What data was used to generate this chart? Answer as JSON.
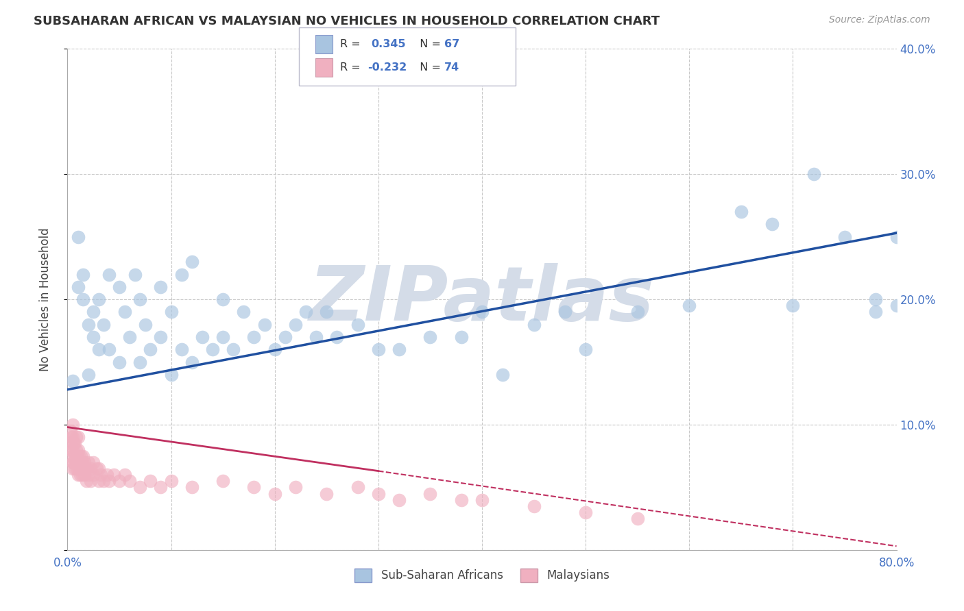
{
  "title": "SUBSAHARAN AFRICAN VS MALAYSIAN NO VEHICLES IN HOUSEHOLD CORRELATION CHART",
  "source": "Source: ZipAtlas.com",
  "ylabel": "No Vehicles in Household",
  "xlim": [
    0,
    0.8
  ],
  "ylim": [
    0,
    0.4
  ],
  "xticks": [
    0.0,
    0.1,
    0.2,
    0.3,
    0.4,
    0.5,
    0.6,
    0.7,
    0.8
  ],
  "yticks": [
    0.0,
    0.1,
    0.2,
    0.3,
    0.4
  ],
  "background_color": "#ffffff",
  "grid_color": "#c8c8c8",
  "watermark": "ZIPatlas",
  "watermark_color": "#d4dce8",
  "label1": "Sub-Saharan Africans",
  "label2": "Malaysians",
  "color1": "#a8c4e0",
  "color2": "#f0b0c0",
  "line_color1": "#2050a0",
  "line_color2": "#c03060",
  "blue_x": [
    0.005,
    0.01,
    0.01,
    0.015,
    0.015,
    0.02,
    0.02,
    0.025,
    0.025,
    0.03,
    0.03,
    0.035,
    0.04,
    0.04,
    0.05,
    0.05,
    0.055,
    0.06,
    0.065,
    0.07,
    0.07,
    0.075,
    0.08,
    0.09,
    0.09,
    0.1,
    0.1,
    0.11,
    0.11,
    0.12,
    0.12,
    0.13,
    0.14,
    0.15,
    0.15,
    0.16,
    0.17,
    0.18,
    0.19,
    0.2,
    0.21,
    0.22,
    0.23,
    0.24,
    0.25,
    0.26,
    0.28,
    0.3,
    0.32,
    0.35,
    0.38,
    0.4,
    0.42,
    0.45,
    0.48,
    0.5,
    0.55,
    0.6,
    0.65,
    0.68,
    0.7,
    0.72,
    0.75,
    0.78,
    0.78,
    0.8,
    0.8
  ],
  "blue_y": [
    0.135,
    0.25,
    0.21,
    0.2,
    0.22,
    0.14,
    0.18,
    0.17,
    0.19,
    0.16,
    0.2,
    0.18,
    0.22,
    0.16,
    0.15,
    0.21,
    0.19,
    0.17,
    0.22,
    0.15,
    0.2,
    0.18,
    0.16,
    0.17,
    0.21,
    0.14,
    0.19,
    0.16,
    0.22,
    0.15,
    0.23,
    0.17,
    0.16,
    0.2,
    0.17,
    0.16,
    0.19,
    0.17,
    0.18,
    0.16,
    0.17,
    0.18,
    0.19,
    0.17,
    0.19,
    0.17,
    0.18,
    0.16,
    0.16,
    0.17,
    0.17,
    0.19,
    0.14,
    0.18,
    0.19,
    0.16,
    0.19,
    0.195,
    0.27,
    0.26,
    0.195,
    0.3,
    0.25,
    0.19,
    0.2,
    0.195,
    0.25
  ],
  "pink_x": [
    0.002,
    0.003,
    0.003,
    0.004,
    0.004,
    0.005,
    0.005,
    0.005,
    0.005,
    0.005,
    0.006,
    0.006,
    0.007,
    0.007,
    0.007,
    0.008,
    0.008,
    0.008,
    0.009,
    0.009,
    0.01,
    0.01,
    0.01,
    0.01,
    0.011,
    0.011,
    0.012,
    0.012,
    0.013,
    0.013,
    0.014,
    0.014,
    0.015,
    0.015,
    0.016,
    0.016,
    0.018,
    0.018,
    0.02,
    0.02,
    0.022,
    0.022,
    0.025,
    0.025,
    0.028,
    0.03,
    0.03,
    0.032,
    0.035,
    0.038,
    0.04,
    0.045,
    0.05,
    0.055,
    0.06,
    0.07,
    0.08,
    0.09,
    0.1,
    0.12,
    0.15,
    0.18,
    0.2,
    0.22,
    0.25,
    0.28,
    0.3,
    0.32,
    0.35,
    0.38,
    0.4,
    0.45,
    0.5,
    0.55
  ],
  "pink_y": [
    0.085,
    0.08,
    0.095,
    0.075,
    0.09,
    0.065,
    0.07,
    0.08,
    0.09,
    0.1,
    0.07,
    0.085,
    0.065,
    0.075,
    0.085,
    0.07,
    0.08,
    0.09,
    0.065,
    0.075,
    0.06,
    0.07,
    0.08,
    0.09,
    0.065,
    0.075,
    0.06,
    0.07,
    0.065,
    0.075,
    0.06,
    0.07,
    0.065,
    0.075,
    0.06,
    0.07,
    0.065,
    0.055,
    0.06,
    0.07,
    0.065,
    0.055,
    0.06,
    0.07,
    0.065,
    0.055,
    0.065,
    0.06,
    0.055,
    0.06,
    0.055,
    0.06,
    0.055,
    0.06,
    0.055,
    0.05,
    0.055,
    0.05,
    0.055,
    0.05,
    0.055,
    0.05,
    0.045,
    0.05,
    0.045,
    0.05,
    0.045,
    0.04,
    0.045,
    0.04,
    0.04,
    0.035,
    0.03,
    0.025
  ],
  "blue_line_x0": 0.0,
  "blue_line_y0": 0.128,
  "blue_line_x1": 0.8,
  "blue_line_y1": 0.253,
  "pink_line_solid_x0": 0.0,
  "pink_line_solid_y0": 0.098,
  "pink_line_solid_x1": 0.3,
  "pink_line_solid_y1": 0.063,
  "pink_line_dash_x0": 0.3,
  "pink_line_dash_y0": 0.063,
  "pink_line_dash_x1": 0.8,
  "pink_line_dash_y1": 0.003
}
